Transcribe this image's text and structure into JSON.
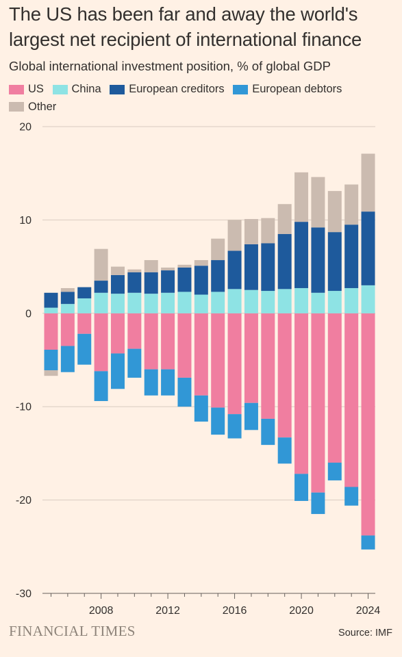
{
  "header": {
    "title": "The US has been far and away the world's largest net recipient of international finance",
    "subtitle": "Global international investment position, % of global GDP"
  },
  "legend": {
    "items": [
      {
        "label": "US",
        "color": "#F07EA0"
      },
      {
        "label": "China",
        "color": "#8EE3E4"
      },
      {
        "label": "European creditors",
        "color": "#1E5A9C"
      },
      {
        "label": "European debtors",
        "color": "#3197D6"
      },
      {
        "label": "Other",
        "color": "#CBBBB0"
      }
    ]
  },
  "footer": {
    "brand": "FINANCIAL TIMES",
    "source": "Source: IMF"
  },
  "chart_data": {
    "type": "bar",
    "stacked": true,
    "x": [
      2005,
      2006,
      2007,
      2008,
      2009,
      2010,
      2011,
      2012,
      2013,
      2014,
      2015,
      2016,
      2017,
      2018,
      2019,
      2020,
      2021,
      2022,
      2023,
      2024
    ],
    "x_tick_labels": [
      "2008",
      "2012",
      "2016",
      "2020",
      "2024"
    ],
    "ylim": [
      -30,
      20
    ],
    "y_ticks": [
      20,
      10,
      0,
      -10,
      -20,
      -30
    ],
    "grid": true,
    "legend_position": "top",
    "series": [
      {
        "name": "US",
        "color": "#F07EA0",
        "values": [
          -3.9,
          -3.5,
          -2.2,
          -6.2,
          -4.3,
          -3.8,
          -6.0,
          -6.0,
          -6.9,
          -8.8,
          -10.1,
          -10.8,
          -9.6,
          -11.3,
          -13.3,
          -17.2,
          -19.2,
          -16.0,
          -18.6,
          -23.8
        ]
      },
      {
        "name": "China",
        "color": "#8EE3E4",
        "values": [
          0.6,
          1.0,
          1.6,
          2.2,
          2.1,
          2.2,
          2.1,
          2.2,
          2.3,
          2.0,
          2.3,
          2.6,
          2.5,
          2.4,
          2.6,
          2.7,
          2.2,
          2.4,
          2.7,
          3.0
        ]
      },
      {
        "name": "European creditors",
        "color": "#1E5A9C",
        "values": [
          1.6,
          1.3,
          1.2,
          1.3,
          2.0,
          2.2,
          2.3,
          2.4,
          2.6,
          3.1,
          3.4,
          4.1,
          4.9,
          5.1,
          5.9,
          7.1,
          7.0,
          6.3,
          6.8,
          7.9
        ]
      },
      {
        "name": "European debtors",
        "color": "#3197D6",
        "values": [
          -2.2,
          -2.8,
          -3.3,
          -3.2,
          -3.8,
          -3.1,
          -2.8,
          -2.8,
          -3.1,
          -2.8,
          -2.9,
          -2.6,
          -2.9,
          -2.8,
          -2.8,
          -2.9,
          -2.3,
          -1.9,
          -2.0,
          -1.5
        ]
      },
      {
        "name": "Other",
        "color": "#CBBBB0",
        "values": [
          -0.6,
          0.4,
          0.0,
          3.4,
          0.9,
          0.3,
          1.3,
          0.3,
          0.3,
          0.6,
          2.3,
          3.3,
          2.7,
          2.7,
          3.2,
          5.3,
          5.4,
          4.4,
          4.3,
          6.2
        ]
      }
    ]
  }
}
